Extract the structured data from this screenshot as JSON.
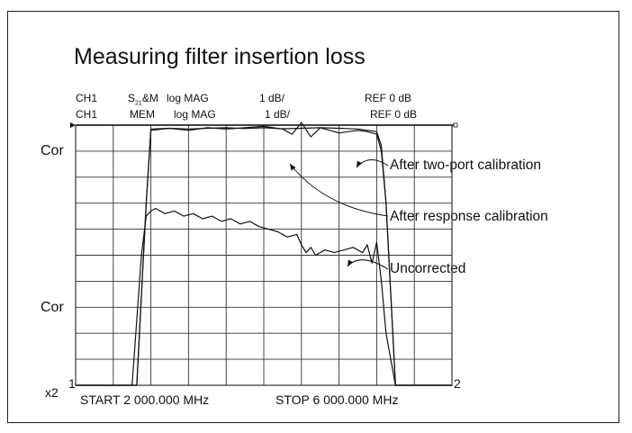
{
  "title": "Measuring filter insertion loss",
  "header": {
    "row1": {
      "channel": "CH1",
      "param": "S",
      "param_sub": "21",
      "param_rest": "&M",
      "format": "log MAG",
      "scale": "1 dB/",
      "ref": "REF  0 dB"
    },
    "row2": {
      "channel": "CH1",
      "param": "MEM",
      "format": "log MAG",
      "scale": "1 dB/",
      "ref": "REF  0 dB"
    }
  },
  "left_labels": {
    "cor_top": "Cor",
    "cor_bottom": "Cor",
    "x2": "x2"
  },
  "marker_labels": {
    "left": "1",
    "right": "2"
  },
  "start_label": "START 2 000.000 MHz",
  "stop_label": "STOP 6 000.000 MHz",
  "annotations": {
    "two_port": "After two-port calibration",
    "response": "After response calibration",
    "uncorrected": "Uncorrected"
  },
  "colors": {
    "trace": "#111111",
    "grid": "#333333"
  },
  "chart_data": {
    "type": "line",
    "title": "Measuring filter insertion loss",
    "xlim": [
      2000,
      6000
    ],
    "ylim": [
      -10,
      0
    ],
    "grid": true,
    "legend": "annotated callouts right",
    "series": [
      {
        "name": "After two-port calibration",
        "x": [
          2000,
          2400,
          2650,
          2750,
          2800,
          3000,
          3200,
          3400,
          3600,
          3800,
          4000,
          4200,
          4400,
          4600,
          4800,
          5000,
          5200,
          5250,
          5300,
          5400,
          5500,
          6000
        ],
        "y": [
          -10,
          -10,
          -10,
          -3,
          -0.15,
          -0.12,
          -0.15,
          -0.12,
          -0.1,
          -0.13,
          -0.1,
          -0.14,
          -0.12,
          -0.1,
          -0.12,
          -0.15,
          -0.25,
          -0.8,
          -3,
          -10,
          -10,
          -10
        ]
      },
      {
        "name": "After response calibration",
        "x": [
          2000,
          2400,
          2650,
          2750,
          2800,
          3000,
          3200,
          3400,
          3600,
          3800,
          4000,
          4200,
          4300,
          4400,
          4500,
          4600,
          4700,
          4800,
          4900,
          5000,
          5100,
          5200,
          5250,
          5300,
          5400,
          5500,
          6000
        ],
        "y": [
          -10,
          -10,
          -10,
          -3,
          -0.2,
          -0.12,
          -0.2,
          -0.1,
          -0.15,
          -0.1,
          -0.05,
          -0.15,
          -0.35,
          0.1,
          -0.45,
          -0.1,
          -0.2,
          -0.3,
          -0.25,
          -0.2,
          -0.25,
          -0.35,
          -1,
          -3,
          -10,
          -10,
          -10
        ]
      },
      {
        "name": "Uncorrected",
        "x": [
          2000,
          2400,
          2600,
          2700,
          2750,
          2800,
          2850,
          2950,
          3050,
          3150,
          3250,
          3350,
          3450,
          3550,
          3650,
          3750,
          3850,
          3950,
          4050,
          4150,
          4250,
          4350,
          4400,
          4450,
          4500,
          4550,
          4650,
          4750,
          4850,
          4950,
          5050,
          5100,
          5150,
          5200,
          5250,
          5300,
          5400,
          5500,
          6000
        ],
        "y": [
          -10,
          -10,
          -10,
          -5,
          -3.5,
          -3.3,
          -3.2,
          -3.4,
          -3.3,
          -3.5,
          -3.4,
          -3.6,
          -3.5,
          -3.7,
          -3.6,
          -3.8,
          -3.7,
          -3.9,
          -4.0,
          -4.1,
          -4.3,
          -4.2,
          -4.6,
          -4.9,
          -4.7,
          -5.0,
          -4.8,
          -4.9,
          -4.8,
          -4.7,
          -4.9,
          -4.6,
          -5.3,
          -4.5,
          -6,
          -8,
          -10,
          -10,
          -10
        ]
      }
    ]
  }
}
